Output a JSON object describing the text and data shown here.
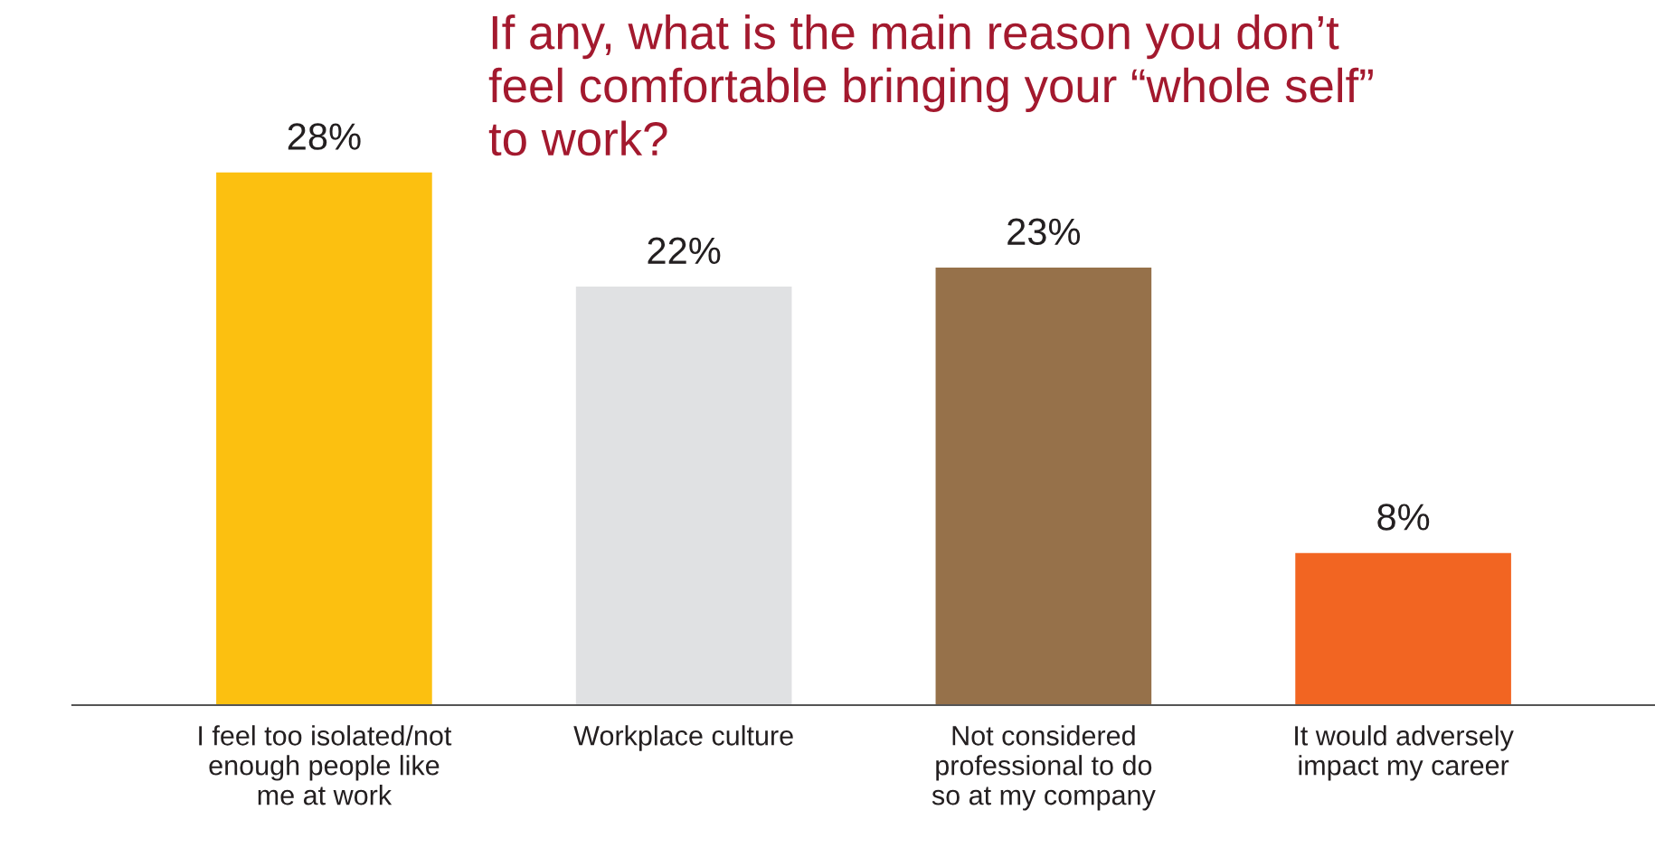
{
  "chart_data": {
    "type": "bar",
    "title": "If any, what is the main reason you don’t\nfeel comfortable bringing your “whole self”\nto work?",
    "categories": [
      "I feel too isolated/not\nenough people like\nme at work",
      "Workplace culture",
      "Not considered\nprofessional to do\nso at my company",
      "It would adversely\nimpact my career"
    ],
    "values": [
      28,
      22,
      23,
      8
    ],
    "colors": [
      "#fcc010",
      "#e0e1e3",
      "#96714a",
      "#f26522"
    ],
    "value_labels": [
      "28%",
      "22%",
      "23%",
      "8%"
    ],
    "grid": false,
    "legend": false
  }
}
